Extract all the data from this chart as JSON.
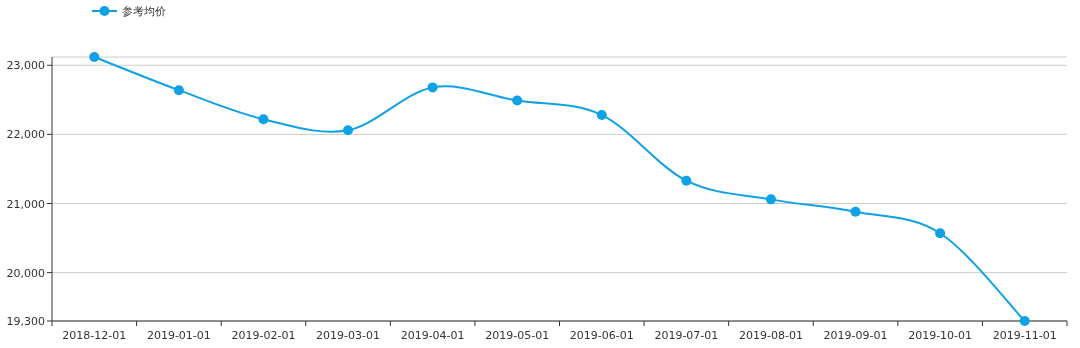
{
  "chart_data": {
    "type": "line",
    "categories": [
      "2018-12-01",
      "2019-01-01",
      "2019-02-01",
      "2019-03-01",
      "2019-04-01",
      "2019-05-01",
      "2019-06-01",
      "2019-07-01",
      "2019-08-01",
      "2019-09-01",
      "2019-10-01",
      "2019-11-01"
    ],
    "series": [
      {
        "name": "参考均价",
        "color": "#0ea1e6",
        "values": [
          23120,
          22640,
          22220,
          22060,
          22680,
          22490,
          22280,
          21330,
          21060,
          20880,
          20570,
          19300
        ]
      }
    ],
    "ylim": [
      19300,
      23120
    ],
    "yticks": [
      {
        "value": 19300,
        "label": "19,300"
      },
      {
        "value": 20000,
        "label": "20,000"
      },
      {
        "value": 21000,
        "label": "21,000"
      },
      {
        "value": 22000,
        "label": "22,000"
      },
      {
        "value": 23000,
        "label": "23,000"
      }
    ],
    "grid": "y",
    "legend": "top left",
    "marker": "circle",
    "line_style": "solid"
  }
}
